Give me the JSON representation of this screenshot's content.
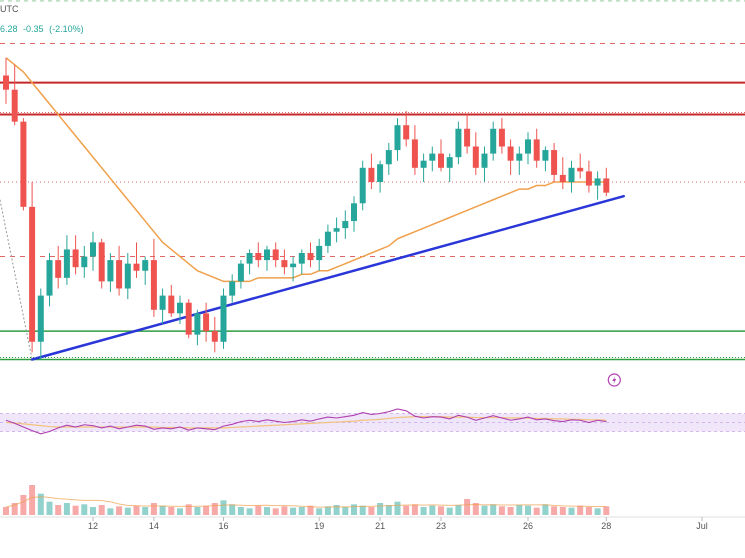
{
  "header": {
    "tz": "UTC",
    "price_tail": "6.28",
    "change": "-0.35",
    "change_pct": "(-2.10%)"
  },
  "colors": {
    "up": "#26a69a",
    "down": "#ef5350",
    "ma": "#f0a04b",
    "trend": "#2a36d8",
    "resistance": "#c62828",
    "support": "#2e9e3e",
    "dashed_red": "#e06666",
    "rsi": "#b040b0",
    "rsi_ma": "#f1c27d",
    "rsi_band": "#e9dcf7",
    "marker": "#b040b0"
  },
  "chart_data": {
    "type": "candlestick",
    "title": "",
    "xlabel": "",
    "ylabel": "",
    "x_ticks": [
      "12",
      "14",
      "16",
      "19",
      "21",
      "23",
      "26",
      "28",
      "Jul"
    ],
    "price_scale": {
      "min": 0,
      "max": 100
    },
    "candles": [
      [
        90,
        95,
        82,
        86
      ],
      [
        86,
        93,
        76,
        77
      ],
      [
        77,
        78,
        52,
        53
      ],
      [
        53,
        60,
        12,
        15
      ],
      [
        15,
        30,
        10,
        28
      ],
      [
        28,
        40,
        25,
        38
      ],
      [
        38,
        42,
        30,
        33
      ],
      [
        33,
        45,
        31,
        41
      ],
      [
        41,
        45,
        34,
        36
      ],
      [
        36,
        42,
        33,
        39
      ],
      [
        39,
        46,
        35,
        43
      ],
      [
        43,
        44,
        30,
        32
      ],
      [
        32,
        40,
        29,
        38
      ],
      [
        38,
        42,
        28,
        30
      ],
      [
        30,
        40,
        27,
        37
      ],
      [
        37,
        43,
        33,
        35
      ],
      [
        35,
        39,
        31,
        38
      ],
      [
        38,
        44,
        22,
        24
      ],
      [
        24,
        30,
        20,
        28
      ],
      [
        28,
        31,
        22,
        23
      ],
      [
        23,
        28,
        20,
        26
      ],
      [
        26,
        27,
        16,
        17
      ],
      [
        17,
        24,
        14,
        23
      ],
      [
        23,
        26,
        15,
        18
      ],
      [
        18,
        22,
        12,
        15
      ],
      [
        15,
        30,
        13,
        28
      ],
      [
        28,
        34,
        26,
        32
      ],
      [
        32,
        38,
        30,
        37
      ],
      [
        37,
        41,
        34,
        40
      ],
      [
        40,
        43,
        36,
        38
      ],
      [
        38,
        42,
        35,
        41
      ],
      [
        41,
        43,
        36,
        38
      ],
      [
        38,
        41,
        34,
        36
      ],
      [
        36,
        39,
        32,
        37
      ],
      [
        37,
        41,
        34,
        40
      ],
      [
        40,
        43,
        36,
        38
      ],
      [
        38,
        44,
        35,
        42
      ],
      [
        42,
        48,
        40,
        46
      ],
      [
        46,
        50,
        43,
        47
      ],
      [
        47,
        52,
        44,
        49
      ],
      [
        49,
        56,
        46,
        54
      ],
      [
        54,
        66,
        52,
        64
      ],
      [
        64,
        68,
        58,
        60
      ],
      [
        60,
        66,
        57,
        65
      ],
      [
        65,
        71,
        62,
        69
      ],
      [
        69,
        78,
        66,
        76
      ],
      [
        76,
        80,
        70,
        72
      ],
      [
        72,
        76,
        62,
        64
      ],
      [
        64,
        68,
        60,
        66
      ],
      [
        66,
        70,
        63,
        68
      ],
      [
        68,
        72,
        63,
        64
      ],
      [
        64,
        68,
        60,
        67
      ],
      [
        67,
        77,
        65,
        75
      ],
      [
        75,
        79,
        68,
        70
      ],
      [
        70,
        74,
        62,
        64
      ],
      [
        64,
        70,
        60,
        68
      ],
      [
        68,
        77,
        66,
        75
      ],
      [
        75,
        78,
        68,
        70
      ],
      [
        70,
        72,
        62,
        66
      ],
      [
        66,
        70,
        62,
        68
      ],
      [
        68,
        74,
        65,
        72
      ],
      [
        72,
        75,
        64,
        66
      ],
      [
        66,
        70,
        63,
        69
      ],
      [
        69,
        71,
        60,
        62
      ],
      [
        62,
        67,
        58,
        60
      ],
      [
        60,
        66,
        57,
        64
      ],
      [
        64,
        68,
        61,
        63
      ],
      [
        63,
        66,
        57,
        59
      ],
      [
        59,
        63,
        55,
        61
      ],
      [
        61,
        64,
        56,
        57
      ]
    ],
    "moving_average": [
      95,
      93,
      91,
      88,
      85,
      82,
      79,
      76,
      73,
      70,
      67,
      64,
      61,
      58,
      55,
      52,
      49,
      46,
      43,
      41,
      39,
      37,
      35,
      34,
      33,
      32,
      32,
      32,
      32,
      33,
      33,
      33,
      33,
      33,
      34,
      34,
      35,
      35,
      36,
      37,
      38,
      39,
      40,
      41,
      42,
      44,
      45,
      46,
      47,
      48,
      49,
      50,
      51,
      52,
      53,
      54,
      55,
      56,
      57,
      58,
      58,
      59,
      59,
      60,
      60,
      60,
      60,
      60,
      60,
      60
    ],
    "trendline": {
      "from": [
        3,
        10
      ],
      "to": [
        71,
        56
      ]
    },
    "levels": {
      "top_green_dashed": 111,
      "red_dashed_upper": 99,
      "resistance_1": 88,
      "resistance_2": 79,
      "red_dotted": 60,
      "red_dashed_lower": 39,
      "support_1": 18,
      "support_2": 10
    },
    "rsi": {
      "range": [
        0,
        100
      ],
      "band": [
        30,
        70
      ],
      "values": [
        55,
        48,
        40,
        32,
        25,
        30,
        38,
        44,
        40,
        45,
        43,
        38,
        42,
        36,
        40,
        44,
        42,
        35,
        38,
        36,
        40,
        33,
        38,
        36,
        34,
        42,
        46,
        52,
        55,
        52,
        56,
        53,
        50,
        52,
        56,
        53,
        58,
        62,
        60,
        63,
        66,
        72,
        68,
        70,
        74,
        80,
        76,
        64,
        60,
        63,
        62,
        58,
        66,
        62,
        55,
        60,
        65,
        60,
        55,
        58,
        62,
        56,
        58,
        54,
        52,
        56,
        55,
        50,
        55,
        52
      ],
      "ma": [
        50,
        49,
        47,
        45,
        43,
        41,
        40,
        40,
        40,
        40,
        40,
        40,
        40,
        40,
        40,
        40,
        40,
        40,
        39,
        39,
        39,
        38,
        38,
        38,
        38,
        38,
        39,
        40,
        41,
        42,
        43,
        44,
        45,
        46,
        47,
        48,
        49,
        50,
        51,
        52,
        53,
        55,
        56,
        57,
        59,
        61,
        62,
        63,
        63,
        63,
        63,
        62,
        62,
        62,
        61,
        61,
        61,
        61,
        60,
        60,
        60,
        59,
        59,
        58,
        58,
        57,
        57,
        56,
        56,
        55
      ]
    },
    "volume": [
      12,
      18,
      30,
      45,
      32,
      20,
      15,
      18,
      14,
      16,
      12,
      15,
      10,
      13,
      11,
      14,
      12,
      18,
      14,
      12,
      10,
      16,
      12,
      14,
      18,
      22,
      16,
      12,
      10,
      14,
      12,
      10,
      13,
      11,
      12,
      14,
      10,
      13,
      15,
      12,
      16,
      14,
      12,
      18,
      15,
      20,
      14,
      16,
      12,
      14,
      13,
      11,
      15,
      24,
      18,
      14,
      16,
      13,
      12,
      15,
      14,
      11,
      16,
      13,
      12,
      11,
      14,
      12,
      10,
      13
    ]
  }
}
